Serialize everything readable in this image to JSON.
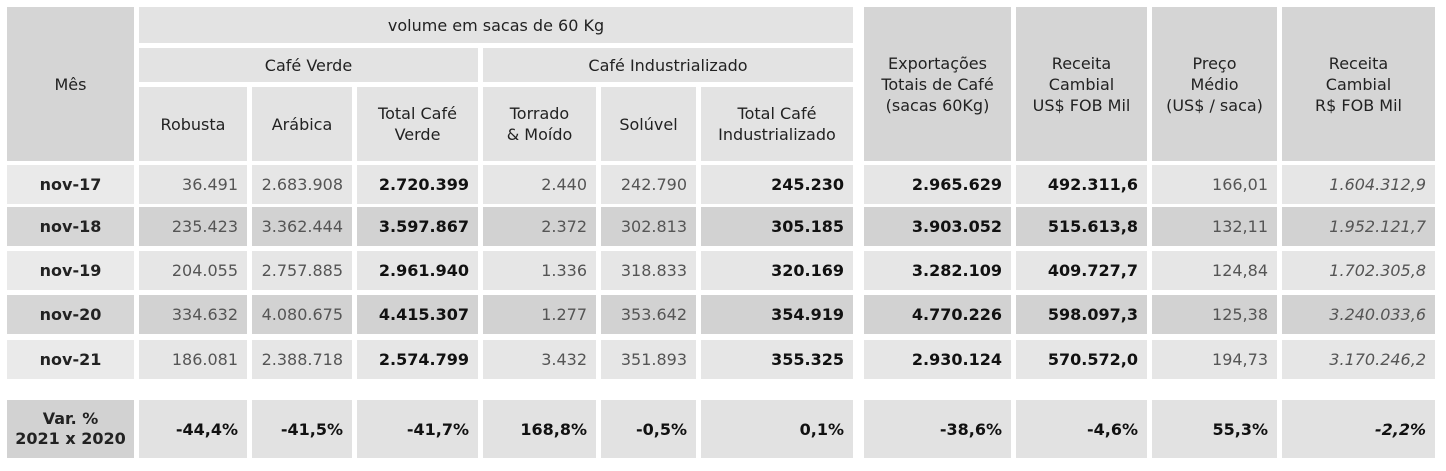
{
  "header": {
    "mes": "Mês",
    "volume": "volume em sacas de 60 Kg",
    "cafe_verde": "Café Verde",
    "cafe_industrializado": "Café Industrializado",
    "robusta": "Robusta",
    "arabica": "Arábica",
    "total_verde_1": "Total Café",
    "total_verde_2": "Verde",
    "torrado_1": "Torrado",
    "torrado_2": "& Moído",
    "soluvel": "Solúvel",
    "total_ind_1": "Total Café",
    "total_ind_2": "Industrializado",
    "export_1": "Exportações",
    "export_2": "Totais de Café",
    "export_3": "(sacas 60Kg)",
    "rec_usd_1": "Receita",
    "rec_usd_2": "Cambial",
    "rec_usd_3": "US$ FOB Mil",
    "preco_1": "Preço",
    "preco_2": "Médio",
    "preco_3": "(US$ / saca)",
    "rec_brl_1": "Receita",
    "rec_brl_2": "Cambial",
    "rec_brl_3": "R$ FOB Mil"
  },
  "rows": [
    {
      "mes": "nov-17",
      "robusta": "36.491",
      "arabica": "2.683.908",
      "total_verde": "2.720.399",
      "torrado": "2.440",
      "soluvel": "242.790",
      "total_ind": "245.230",
      "export": "2.965.629",
      "rec_usd": "492.311,6",
      "preco": "166,01",
      "rec_brl": "1.604.312,9"
    },
    {
      "mes": "nov-18",
      "robusta": "235.423",
      "arabica": "3.362.444",
      "total_verde": "3.597.867",
      "torrado": "2.372",
      "soluvel": "302.813",
      "total_ind": "305.185",
      "export": "3.903.052",
      "rec_usd": "515.613,8",
      "preco": "132,11",
      "rec_brl": "1.952.121,7"
    },
    {
      "mes": "nov-19",
      "robusta": "204.055",
      "arabica": "2.757.885",
      "total_verde": "2.961.940",
      "torrado": "1.336",
      "soluvel": "318.833",
      "total_ind": "320.169",
      "export": "3.282.109",
      "rec_usd": "409.727,7",
      "preco": "124,84",
      "rec_brl": "1.702.305,8"
    },
    {
      "mes": "nov-20",
      "robusta": "334.632",
      "arabica": "4.080.675",
      "total_verde": "4.415.307",
      "torrado": "1.277",
      "soluvel": "353.642",
      "total_ind": "354.919",
      "export": "4.770.226",
      "rec_usd": "598.097,3",
      "preco": "125,38",
      "rec_brl": "3.240.033,6"
    },
    {
      "mes": "nov-21",
      "robusta": "186.081",
      "arabica": "2.388.718",
      "total_verde": "2.574.799",
      "torrado": "3.432",
      "soluvel": "351.893",
      "total_ind": "355.325",
      "export": "2.930.124",
      "rec_usd": "570.572,0",
      "preco": "194,73",
      "rec_brl": "3.170.246,2"
    }
  ],
  "variation": {
    "label_1": "Var. %",
    "label_2": "2021 x 2020",
    "robusta": "-44,4%",
    "arabica": "-41,5%",
    "total_verde": "-41,7%",
    "torrado": "168,8%",
    "soluvel": "-0,5%",
    "total_ind": "0,1%",
    "export": "-38,6%",
    "rec_usd": "-4,6%",
    "preco": "55,3%",
    "rec_brl": "-2,2%"
  }
}
